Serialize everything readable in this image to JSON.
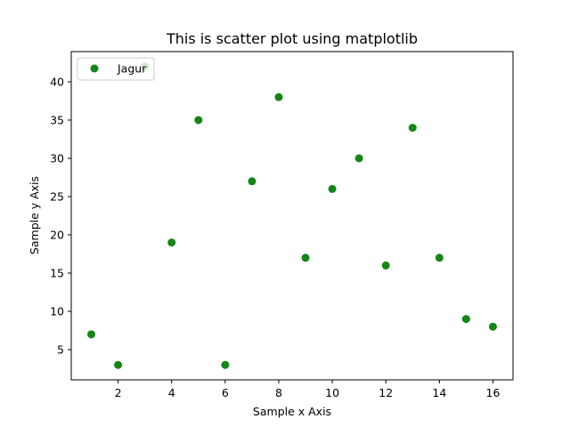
{
  "chart_data": {
    "type": "scatter",
    "title": "This is scatter plot using matplotlib",
    "xlabel": "Sample x Axis",
    "ylabel": "Sample y Axis",
    "xlim": [
      0.25,
      16.75
    ],
    "ylim": [
      1.05,
      43.95
    ],
    "xticks": [
      2,
      4,
      6,
      8,
      10,
      12,
      14,
      16
    ],
    "yticks": [
      5,
      10,
      15,
      20,
      25,
      30,
      35,
      40
    ],
    "grid": false,
    "legend_position": "upper-left",
    "color": "#158615",
    "series": [
      {
        "name": "Jagur",
        "x": [
          1,
          2,
          3,
          4,
          5,
          6,
          7,
          8,
          9,
          10,
          11,
          12,
          13,
          14,
          15,
          16
        ],
        "y": [
          7,
          3,
          42,
          19,
          35,
          3,
          27,
          38,
          17,
          26,
          30,
          16,
          34,
          17,
          9,
          8
        ]
      }
    ]
  }
}
